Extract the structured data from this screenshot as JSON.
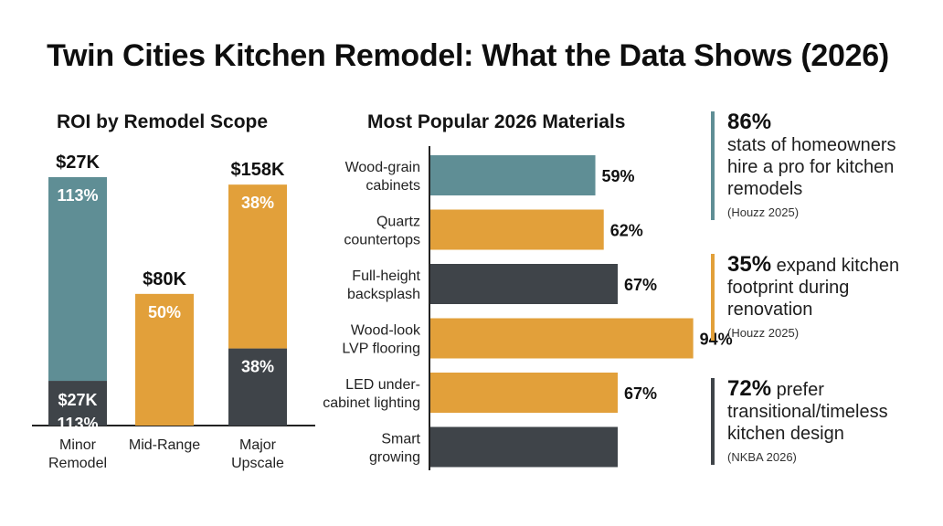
{
  "title": "Twin Cities Kitchen Remodel: What the Data Shows (2026)",
  "colors": {
    "teal": "#5f8e95",
    "orange": "#e2a03a",
    "charcoal": "#3f4449",
    "text": "#111111"
  },
  "chart_data": [
    {
      "type": "bar",
      "stacked": true,
      "title": "ROI by Remodel Scope",
      "categories": [
        "Minor\nRemodel",
        "Mid-Range",
        "Major\nUpscale"
      ],
      "top_labels": [
        "$27K",
        "$80K",
        "$158K"
      ],
      "segments": [
        [
          {
            "label": "$27K",
            "value": "113%",
            "color": "#3f4449",
            "height": 0.18
          },
          {
            "label": "",
            "value": "113%",
            "color": "#5f8e95",
            "height": 0.82
          }
        ],
        [
          {
            "label": "",
            "value": "50%",
            "color": "#e2a03a",
            "height": 1.0
          }
        ],
        [
          {
            "label": "",
            "value": "38%",
            "color": "#3f4449",
            "height": 0.32
          },
          {
            "label": "",
            "value": "38%",
            "color": "#e2a03a",
            "height": 0.68
          }
        ]
      ],
      "relative_totals": [
        1.0,
        0.53,
        0.97
      ]
    },
    {
      "type": "bar",
      "orientation": "horizontal",
      "title": "Most Popular 2026 Materials",
      "categories": [
        "Wood-grain\ncabinets",
        "Quartz\ncountertops",
        "Full-height\nbacksplash",
        "Wood-look\nLVP flooring",
        "LED under-\ncabinet lighting",
        "Smart\ngrowing"
      ],
      "values": [
        59,
        62,
        67,
        94,
        67,
        67
      ],
      "value_labels": [
        "59%",
        "62%",
        "67%",
        "94%",
        "67%",
        ""
      ],
      "bar_colors": [
        "#5f8e95",
        "#e2a03a",
        "#3f4449",
        "#e2a03a",
        "#e2a03a",
        "#3f4449"
      ],
      "xlim": [
        0,
        100
      ]
    }
  ],
  "stats": [
    {
      "big": "86%",
      "lines": [
        "stats of homeowners",
        "hire a pro for kitchen",
        "remodels"
      ],
      "first_inline": "",
      "source": "(Houzz 2025)"
    },
    {
      "big": "35%",
      "first_inline": " expand kitchen",
      "lines": [
        "footprint during",
        "renovation"
      ],
      "source": "(Houzz 2025)"
    },
    {
      "big": "72%",
      "first_inline": " prefer",
      "lines": [
        "transitional/timeless",
        "kitchen design"
      ],
      "source": "(NKBA 2026)"
    }
  ]
}
